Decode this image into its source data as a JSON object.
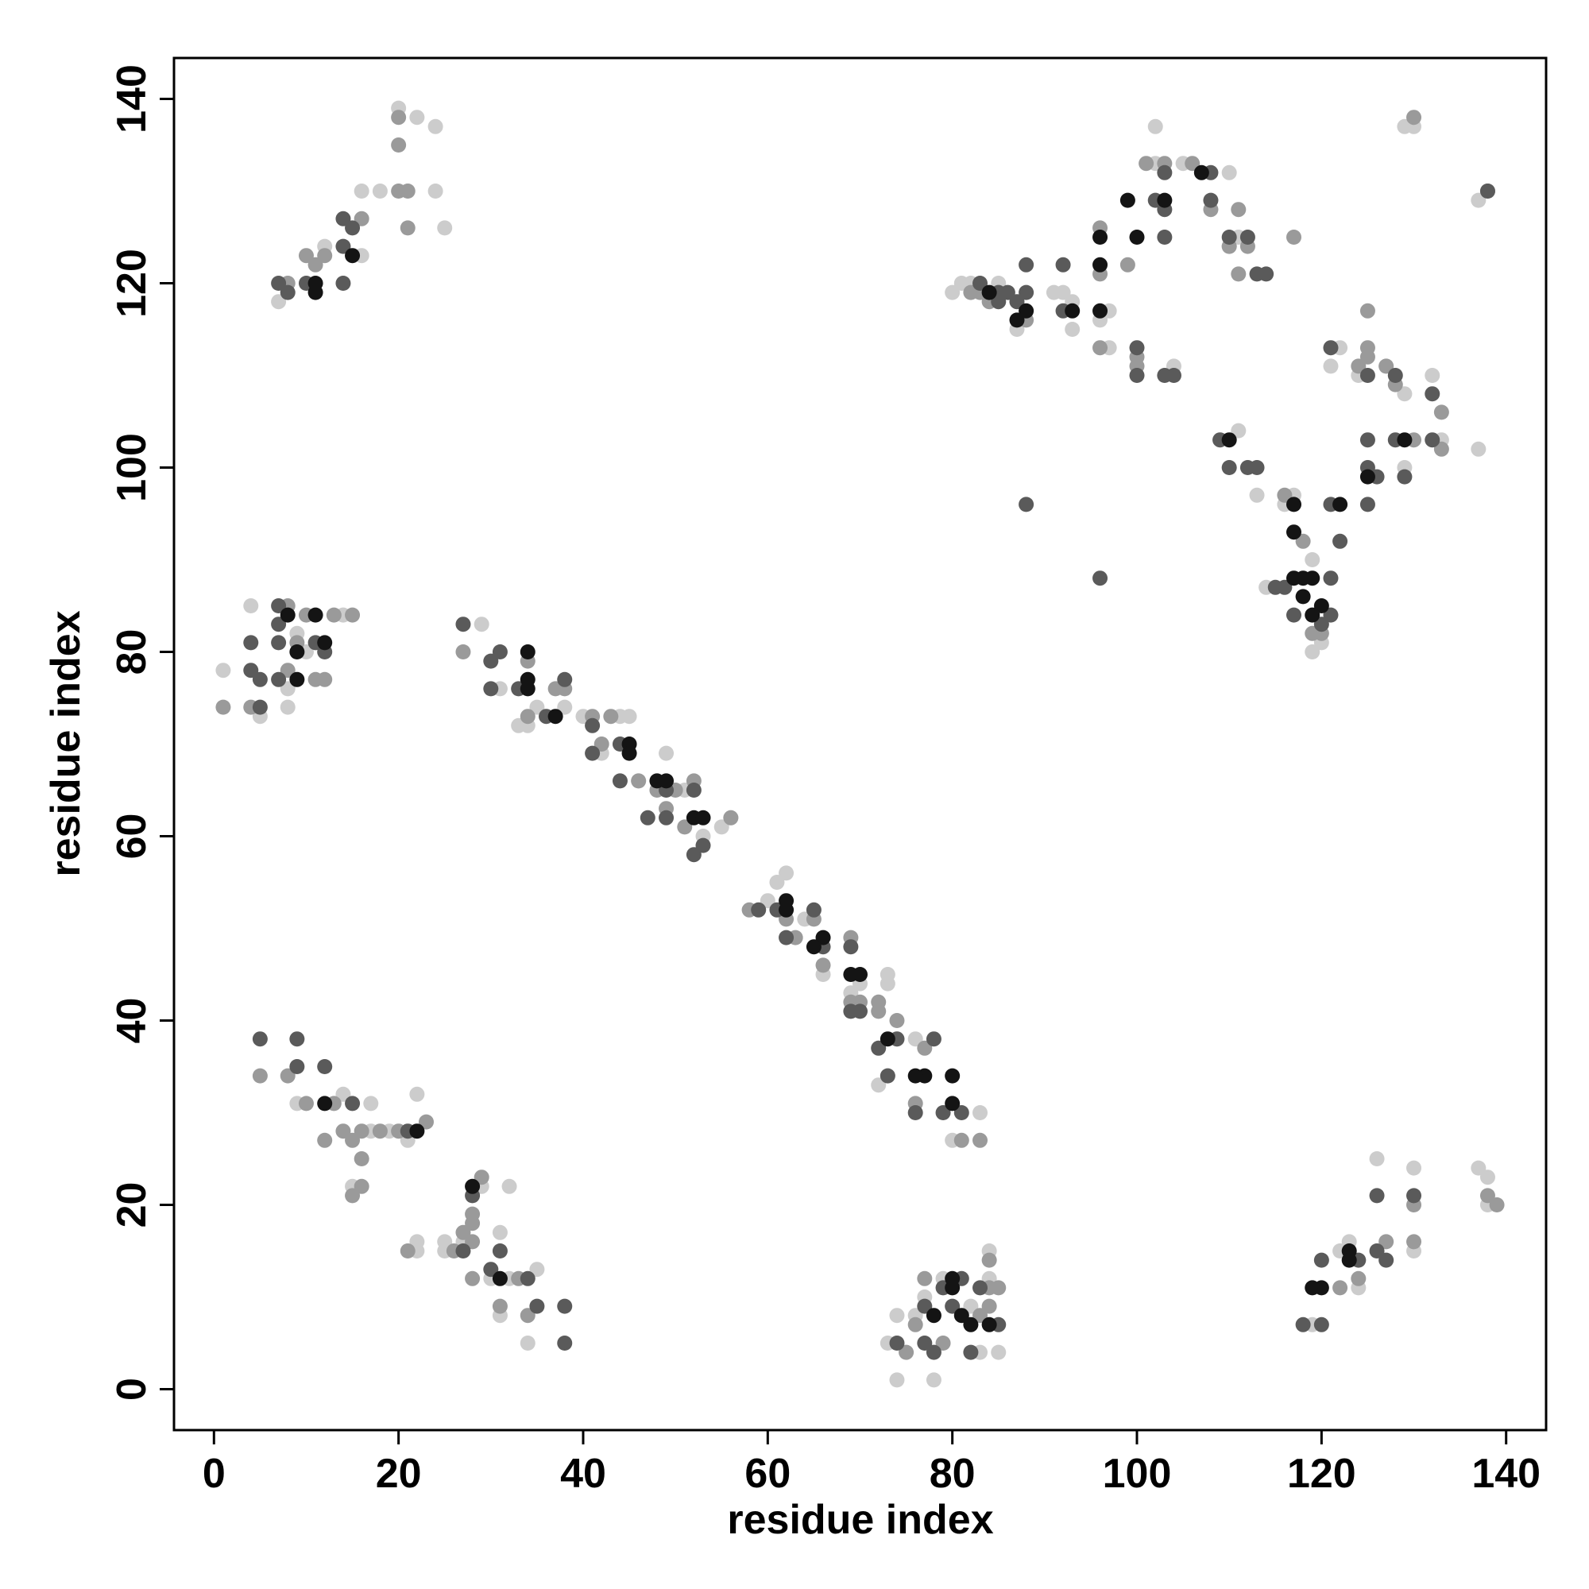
{
  "chart_data": {
    "type": "scatter",
    "xlabel": "residue index",
    "ylabel": "residue index",
    "xlim": [
      -4.33,
      144.33
    ],
    "ylim": [
      -4.44,
      144.44
    ],
    "xticks": [
      0,
      20,
      40,
      60,
      80,
      100,
      120,
      140
    ],
    "yticks": [
      0,
      20,
      40,
      60,
      80,
      100,
      120,
      140
    ],
    "series": [
      {
        "color": "#cccccc",
        "x": [
          7,
          12,
          18,
          16,
          16,
          22,
          24,
          24,
          25,
          20,
          1,
          4,
          5,
          8,
          8,
          9,
          10,
          14,
          29,
          31,
          33,
          34,
          35,
          38,
          40,
          42,
          44,
          45,
          46,
          49,
          51,
          53,
          55,
          56,
          60,
          61,
          62,
          64,
          66,
          70,
          69,
          73,
          73,
          74,
          72,
          76,
          80,
          83,
          73,
          9,
          14,
          17,
          17,
          19,
          22,
          21,
          15,
          22,
          22,
          25,
          25,
          27,
          30,
          29,
          32,
          31,
          31,
          32,
          35,
          34,
          73,
          74,
          74,
          76,
          77,
          78,
          79,
          82,
          84,
          84,
          85,
          83,
          119,
          122,
          123,
          124,
          126,
          130,
          130,
          137,
          138,
          138,
          119,
          117,
          114,
          116,
          119,
          120,
          122,
          121,
          124,
          127,
          129,
          132,
          129,
          133,
          137,
          111,
          113,
          102,
          102,
          105,
          110,
          110,
          111,
          104,
          97,
          97,
          96,
          93,
          91,
          93,
          92,
          85,
          80,
          81,
          82,
          87,
          129,
          130,
          137
        ],
        "values": [
          118,
          124,
          130,
          130,
          123,
          138,
          137,
          130,
          126,
          139,
          78,
          85,
          73,
          74,
          76,
          82,
          80,
          84,
          83,
          76,
          72,
          72,
          74,
          74,
          73,
          69,
          73,
          73,
          66,
          69,
          65,
          60,
          61,
          62,
          53,
          55,
          56,
          51,
          45,
          44,
          43,
          45,
          44,
          38,
          33,
          38,
          27,
          30,
          34,
          31,
          32,
          31,
          28,
          28,
          32,
          27,
          22,
          16,
          15,
          16,
          15,
          16,
          12,
          22,
          22,
          17,
          8,
          12,
          13,
          5,
          5,
          8,
          1,
          8,
          10,
          1,
          12,
          9,
          15,
          12,
          4,
          4,
          7,
          15,
          16,
          11,
          25,
          24,
          15,
          24,
          23,
          20,
          90,
          97,
          87,
          96,
          80,
          81,
          113,
          111,
          110,
          111,
          108,
          110,
          100,
          103,
          102,
          104,
          97,
          137,
          133,
          133,
          132,
          124,
          125,
          111,
          117,
          113,
          116,
          115,
          119,
          118,
          119,
          120,
          119,
          120,
          120,
          115,
          137,
          137,
          129
        ]
      },
      {
        "color": "#9a9a9a",
        "x": [
          8,
          10,
          12,
          11,
          16,
          20,
          21,
          21,
          20,
          20,
          8,
          9,
          10,
          13,
          8,
          11,
          12,
          15,
          4,
          1,
          27,
          34,
          37,
          38,
          34,
          41,
          42,
          43,
          46,
          48,
          49,
          50,
          51,
          56,
          52,
          58,
          62,
          63,
          65,
          66,
          69,
          69,
          70,
          72,
          74,
          72,
          77,
          76,
          81,
          83,
          5,
          8,
          10,
          13,
          12,
          15,
          16,
          14,
          16,
          15,
          16,
          18,
          20,
          23,
          21,
          26,
          27,
          28,
          28,
          28,
          28,
          29,
          31,
          34,
          33,
          75,
          76,
          77,
          79,
          83,
          84,
          84,
          85,
          84,
          122,
          124,
          127,
          130,
          130,
          139,
          138,
          116,
          118,
          119,
          120,
          124,
          125,
          125,
          127,
          128,
          130,
          133,
          133,
          125,
          110,
          112,
          111,
          101,
          103,
          106,
          108,
          111,
          99,
          96,
          96,
          100,
          100,
          96,
          88,
          83,
          84,
          82,
          117,
          130,
          138
        ],
        "values": [
          120,
          123,
          123,
          122,
          127,
          130,
          130,
          126,
          138,
          135,
          85,
          81,
          84,
          84,
          78,
          77,
          77,
          84,
          74,
          74,
          80,
          79,
          76,
          76,
          73,
          73,
          70,
          73,
          66,
          65,
          63,
          65,
          61,
          62,
          66,
          52,
          51,
          49,
          51,
          46,
          49,
          42,
          42,
          41,
          40,
          42,
          37,
          31,
          27,
          27,
          34,
          34,
          31,
          31,
          27,
          27,
          28,
          28,
          25,
          21,
          22,
          28,
          28,
          29,
          15,
          15,
          17,
          19,
          18,
          16,
          12,
          23,
          9,
          8,
          12,
          4,
          7,
          12,
          5,
          8,
          11,
          14,
          11,
          9,
          11,
          12,
          16,
          20,
          16,
          20,
          21,
          97,
          92,
          82,
          82,
          111,
          112,
          113,
          111,
          109,
          103,
          106,
          102,
          117,
          124,
          124,
          121,
          133,
          133,
          133,
          128,
          128,
          122,
          126,
          121,
          112,
          111,
          113,
          116,
          119,
          118,
          119,
          125,
          138,
          130
        ]
      },
      {
        "color": "#5a5a5a",
        "x": [
          7,
          8,
          10,
          14,
          14,
          15,
          14,
          7,
          7,
          4,
          4,
          5,
          7,
          11,
          12,
          7,
          5,
          27,
          30,
          31,
          30,
          33,
          38,
          36,
          41,
          41,
          44,
          44,
          47,
          49,
          49,
          52,
          52,
          53,
          59,
          61,
          62,
          65,
          66,
          69,
          69,
          70,
          72,
          73,
          76,
          74,
          78,
          79,
          81,
          88,
          96,
          5,
          9,
          9,
          12,
          15,
          21,
          28,
          27,
          30,
          31,
          34,
          35,
          38,
          38,
          74,
          77,
          78,
          77,
          79,
          81,
          83,
          85,
          80,
          82,
          118,
          120,
          120,
          124,
          126,
          127,
          126,
          130,
          115,
          116,
          121,
          122,
          121,
          125,
          126,
          125,
          125,
          128,
          129,
          132,
          132,
          128,
          121,
          125,
          109,
          110,
          112,
          113,
          103,
          103,
          102,
          103,
          108,
          108,
          110,
          112,
          113,
          114,
          100,
          100,
          103,
          104,
          92,
          92,
          88,
          87,
          86,
          83,
          85,
          85,
          88,
          121,
          120,
          138,
          117
        ],
        "values": [
          120,
          119,
          120,
          124,
          127,
          126,
          120,
          85,
          83,
          81,
          78,
          77,
          81,
          81,
          80,
          77,
          74,
          83,
          79,
          80,
          76,
          76,
          77,
          73,
          72,
          69,
          70,
          66,
          62,
          62,
          65,
          65,
          58,
          59,
          52,
          52,
          49,
          52,
          48,
          48,
          41,
          41,
          37,
          34,
          30,
          38,
          38,
          30,
          30,
          96,
          88,
          38,
          38,
          35,
          35,
          31,
          28,
          21,
          15,
          13,
          15,
          12,
          9,
          9,
          5,
          5,
          5,
          4,
          9,
          11,
          12,
          11,
          7,
          9,
          4,
          7,
          7,
          14,
          14,
          15,
          14,
          21,
          21,
          87,
          87,
          88,
          92,
          96,
          96,
          99,
          100,
          103,
          103,
          99,
          108,
          103,
          110,
          113,
          110,
          103,
          100,
          100,
          100,
          125,
          132,
          129,
          128,
          132,
          129,
          125,
          125,
          121,
          121,
          113,
          110,
          110,
          110,
          122,
          117,
          122,
          118,
          119,
          120,
          118,
          119,
          119,
          84,
          83,
          130,
          84
        ]
      },
      {
        "color": "#141414",
        "x": [
          11,
          11,
          15,
          8,
          11,
          9,
          12,
          9,
          34,
          34,
          34,
          37,
          45,
          45,
          48,
          49,
          52,
          53,
          62,
          62,
          66,
          65,
          70,
          69,
          73,
          77,
          76,
          80,
          80,
          12,
          22,
          28,
          31,
          80,
          80,
          81,
          82,
          84,
          78,
          120,
          119,
          123,
          123,
          117,
          117,
          117,
          118,
          119,
          118,
          122,
          129,
          125,
          96,
          96,
          99,
          100,
          103,
          107,
          88,
          87,
          84,
          96,
          93,
          110,
          120,
          119
        ],
        "values": [
          120,
          119,
          123,
          84,
          84,
          80,
          81,
          77,
          80,
          77,
          76,
          73,
          70,
          69,
          66,
          66,
          62,
          62,
          53,
          52,
          49,
          48,
          45,
          45,
          38,
          34,
          34,
          34,
          31,
          31,
          28,
          22,
          12,
          12,
          11,
          8,
          7,
          7,
          8,
          11,
          11,
          15,
          14,
          96,
          93,
          88,
          88,
          88,
          86,
          96,
          103,
          99,
          125,
          122,
          129,
          125,
          129,
          132,
          117,
          116,
          119,
          117,
          117,
          103,
          85,
          84
        ]
      }
    ]
  }
}
